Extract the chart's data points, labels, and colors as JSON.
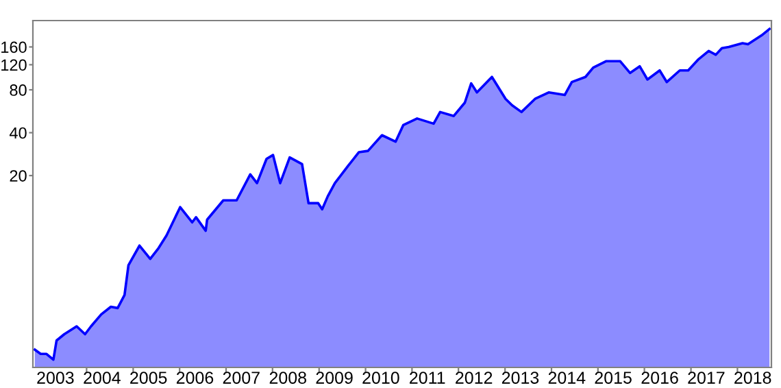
{
  "chart_data": {
    "type": "area",
    "log": "y",
    "grid": false,
    "x": [
      "2002-11-20",
      "2003-01-05",
      "2003-02-20",
      "2003-04-15",
      "2003-05-10",
      "2003-07-10",
      "2003-10-15",
      "2003-12-20",
      "2004-02-05",
      "2004-04-25",
      "2004-07-10",
      "2004-09-01",
      "2004-10-25",
      "2004-11-25",
      "2005-02-20",
      "2005-05-15",
      "2005-07-20",
      "2005-09-20",
      "2006-01-05",
      "2006-04-10",
      "2006-05-10",
      "2006-07-25",
      "2006-08-05",
      "2006-12-10",
      "2007-03-25",
      "2007-07-10",
      "2007-09-01",
      "2007-11-15",
      "2008-01-05",
      "2008-03-01",
      "2008-05-15",
      "2008-08-20",
      "2008-10-10",
      "2008-12-25",
      "2009-01-25",
      "2009-03-10",
      "2009-05-05",
      "2009-08-20",
      "2009-11-10",
      "2010-01-20",
      "2010-05-10",
      "2010-08-25",
      "2010-10-25",
      "2011-02-10",
      "2011-06-20",
      "2011-08-10",
      "2011-11-25",
      "2012-02-20",
      "2012-04-10",
      "2012-05-25",
      "2012-09-20",
      "2013-01-05",
      "2013-02-25",
      "2013-05-10",
      "2013-08-25",
      "2013-12-10",
      "2014-04-15",
      "2014-06-10",
      "2014-09-25",
      "2014-11-25",
      "2015-03-05",
      "2015-06-25",
      "2015-09-10",
      "2015-11-25",
      "2016-01-25",
      "2016-04-30",
      "2016-06-25",
      "2016-10-05",
      "2016-12-10",
      "2017-02-25",
      "2017-05-20",
      "2017-07-15",
      "2017-09-01",
      "2017-10-25",
      "2018-02-10",
      "2018-03-25",
      "2018-07-10",
      "2018-09-10"
    ],
    "series": [
      {
        "color": "#0000ff",
        "values": [
          1.2,
          1.12,
          1.12,
          1.02,
          1.39,
          1.54,
          1.75,
          1.54,
          1.75,
          2.12,
          2.4,
          2.35,
          2.9,
          4.7,
          6.45,
          5.2,
          6.2,
          7.6,
          12.0,
          9.4,
          10.2,
          8.2,
          9.8,
          13.4,
          13.4,
          20.4,
          17.7,
          26.2,
          27.9,
          17.7,
          26.8,
          24.1,
          12.8,
          12.8,
          11.6,
          14.3,
          17.7,
          23.6,
          29.2,
          29.8,
          38.4,
          34.6,
          45.3,
          50.3,
          46.3,
          55.9,
          52.4,
          65,
          88.8,
          76.7,
          98.5,
          69.1,
          62.3,
          55.9,
          69.1,
          76.7,
          73.6,
          90.7,
          98.5,
          114.6,
          127,
          127,
          105,
          117,
          94.5,
          109.4,
          90.7,
          109.4,
          109.4,
          130,
          150,
          141,
          157,
          160,
          170,
          167,
          193,
          214
        ]
      }
    ],
    "xlim": [
      "2002-11-05",
      "2018-09-25"
    ],
    "xticks": [
      {
        "value": "2003-05-01",
        "label": "2003"
      },
      {
        "value": "2004-01-01",
        "label": null
      },
      {
        "value": "2004-05-01",
        "label": "2004"
      },
      {
        "value": "2005-01-01",
        "label": null
      },
      {
        "value": "2005-05-01",
        "label": "2005"
      },
      {
        "value": "2006-01-01",
        "label": null
      },
      {
        "value": "2006-05-01",
        "label": "2006"
      },
      {
        "value": "2007-01-01",
        "label": null
      },
      {
        "value": "2007-05-01",
        "label": "2007"
      },
      {
        "value": "2008-01-01",
        "label": null
      },
      {
        "value": "2008-05-01",
        "label": "2008"
      },
      {
        "value": "2009-01-01",
        "label": null
      },
      {
        "value": "2009-05-01",
        "label": "2009"
      },
      {
        "value": "2010-01-01",
        "label": null
      },
      {
        "value": "2010-05-01",
        "label": "2010"
      },
      {
        "value": "2011-01-01",
        "label": null
      },
      {
        "value": "2011-05-01",
        "label": "2011"
      },
      {
        "value": "2012-01-01",
        "label": null
      },
      {
        "value": "2012-05-01",
        "label": "2012"
      },
      {
        "value": "2013-01-01",
        "label": null
      },
      {
        "value": "2013-05-01",
        "label": "2013"
      },
      {
        "value": "2014-01-01",
        "label": null
      },
      {
        "value": "2014-05-01",
        "label": "2014"
      },
      {
        "value": "2015-01-01",
        "label": null
      },
      {
        "value": "2015-05-01",
        "label": "2015"
      },
      {
        "value": "2016-01-01",
        "label": null
      },
      {
        "value": "2016-05-01",
        "label": "2016"
      },
      {
        "value": "2017-01-01",
        "label": null
      },
      {
        "value": "2017-05-01",
        "label": "2017"
      },
      {
        "value": "2018-01-01",
        "label": null
      },
      {
        "value": "2018-05-01",
        "label": "2018"
      }
    ],
    "ylim": [
      0.9,
      245
    ],
    "yticks": [
      20,
      40,
      80,
      120,
      160
    ]
  }
}
